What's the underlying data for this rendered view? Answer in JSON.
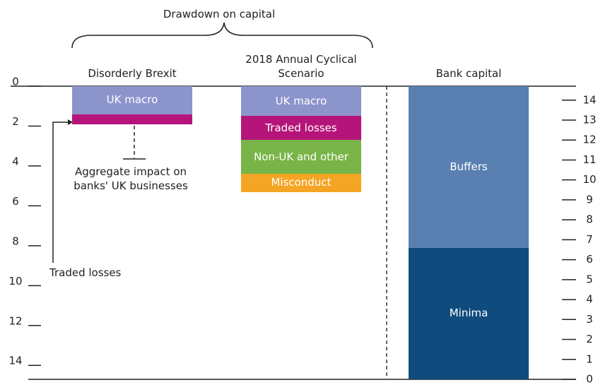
{
  "chart_data": {
    "type": "bar",
    "categories": [
      "Disorderly Brexit",
      "2018 Annual Cyclical Scenario",
      "Bank capital"
    ],
    "series": [
      {
        "name": "UK macro",
        "color": "#8c94cc",
        "values": [
          1.4,
          1.5,
          null
        ]
      },
      {
        "name": "Traded losses",
        "color": "#b5157a",
        "values": [
          0.5,
          1.2,
          null
        ]
      },
      {
        "name": "Non-UK and other",
        "color": "#78b447",
        "values": [
          null,
          1.7,
          null
        ]
      },
      {
        "name": "Misconduct",
        "color": "#f5a524",
        "values": [
          null,
          0.9,
          null
        ]
      },
      {
        "name": "Minima",
        "color": "#0f4c7d",
        "values": [
          null,
          null,
          6.6
        ],
        "axis": "y2"
      },
      {
        "name": "Buffers",
        "color": "#5a80b1",
        "values": [
          null,
          null,
          8.1
        ],
        "axis": "y2"
      }
    ],
    "ylim": [
      0,
      14.7
    ],
    "yticks": [
      0,
      2,
      4,
      6,
      8,
      10,
      12,
      14
    ],
    "y_inverted": true,
    "y2lim": [
      0,
      14.7
    ],
    "y2ticks": [
      0,
      1,
      2,
      3,
      4,
      5,
      6,
      7,
      8,
      9,
      10,
      11,
      12,
      13,
      14
    ],
    "annotations": [
      "Drawdown on capital",
      "Aggregate impact on banks' UK businesses",
      "Traded losses"
    ]
  }
}
